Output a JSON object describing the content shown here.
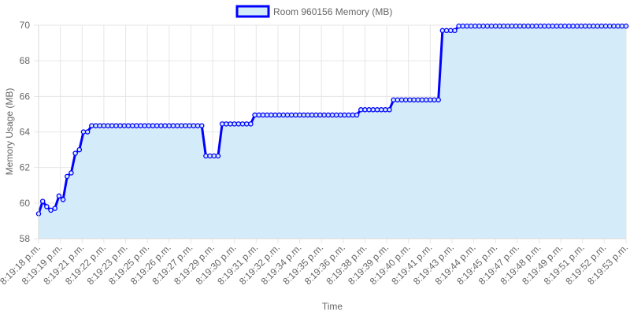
{
  "chart_data": {
    "type": "line",
    "title": "",
    "xlabel": "Time",
    "ylabel": "Memory Usage (MB)",
    "ylim": [
      58,
      70
    ],
    "y_ticks": [
      58,
      60,
      62,
      64,
      66,
      68,
      70
    ],
    "grid": true,
    "legend_position": "top",
    "colors": {
      "line": "#0000ff",
      "fill": "#d4ebfa",
      "grid": "#e6e6e6"
    },
    "x_tick_labels": [
      "8:19:18 p.m.",
      "8:19:19 p.m.",
      "8:19:21 p.m.",
      "8:19:22 p.m.",
      "8:19:23 p.m.",
      "8:19:25 p.m.",
      "8:19:26 p.m.",
      "8:19:27 p.m.",
      "8:19:29 p.m.",
      "8:19:30 p.m.",
      "8:19:31 p.m.",
      "8:19:32 p.m.",
      "8:19:34 p.m.",
      "8:19:35 p.m.",
      "8:19:36 p.m.",
      "8:19:38 p.m.",
      "8:19:39 p.m.",
      "8:19:40 p.m.",
      "8:19:41 p.m.",
      "8:19:43 p.m.",
      "8:19:44 p.m.",
      "8:19:45 p.m.",
      "8:19:47 p.m.",
      "8:19:48 p.m.",
      "8:19:49 p.m.",
      "8:19:51 p.m.",
      "8:19:52 p.m.",
      "8:19:53 p.m."
    ],
    "series": [
      {
        "name": "Room 960156 Memory (MB)",
        "values": [
          59.4,
          60.1,
          59.8,
          59.6,
          59.7,
          60.4,
          60.2,
          61.5,
          61.7,
          62.8,
          63.0,
          64.0,
          64.0,
          64.35,
          64.35,
          64.35,
          64.35,
          64.35,
          64.35,
          64.35,
          64.35,
          64.35,
          64.35,
          64.35,
          64.35,
          64.35,
          64.35,
          64.35,
          64.35,
          64.35,
          64.35,
          64.35,
          64.35,
          64.35,
          64.35,
          64.35,
          64.35,
          64.35,
          64.35,
          64.35,
          64.35,
          62.65,
          62.65,
          62.65,
          62.65,
          64.45,
          64.45,
          64.45,
          64.45,
          64.45,
          64.45,
          64.45,
          64.45,
          64.95,
          64.95,
          64.95,
          64.95,
          64.95,
          64.95,
          64.95,
          64.95,
          64.95,
          64.95,
          64.95,
          64.95,
          64.95,
          64.95,
          64.95,
          64.95,
          64.95,
          64.95,
          64.95,
          64.95,
          64.95,
          64.95,
          64.95,
          64.95,
          64.95,
          64.95,
          65.25,
          65.25,
          65.25,
          65.25,
          65.25,
          65.25,
          65.25,
          65.25,
          65.8,
          65.8,
          65.8,
          65.8,
          65.8,
          65.8,
          65.8,
          65.8,
          65.8,
          65.8,
          65.8,
          65.8,
          69.7,
          69.7,
          69.7,
          69.7,
          69.95,
          69.95,
          69.95,
          69.95,
          69.95,
          69.95,
          69.95,
          69.95,
          69.95,
          69.95,
          69.95,
          69.95,
          69.95,
          69.95,
          69.95,
          69.95,
          69.95,
          69.95,
          69.95,
          69.95,
          69.95,
          69.95,
          69.95,
          69.95,
          69.95,
          69.95,
          69.95,
          69.95,
          69.95,
          69.95,
          69.95,
          69.95,
          69.95,
          69.95,
          69.95,
          69.95,
          69.95,
          69.95,
          69.95,
          69.95,
          69.95,
          69.95
        ]
      }
    ]
  }
}
